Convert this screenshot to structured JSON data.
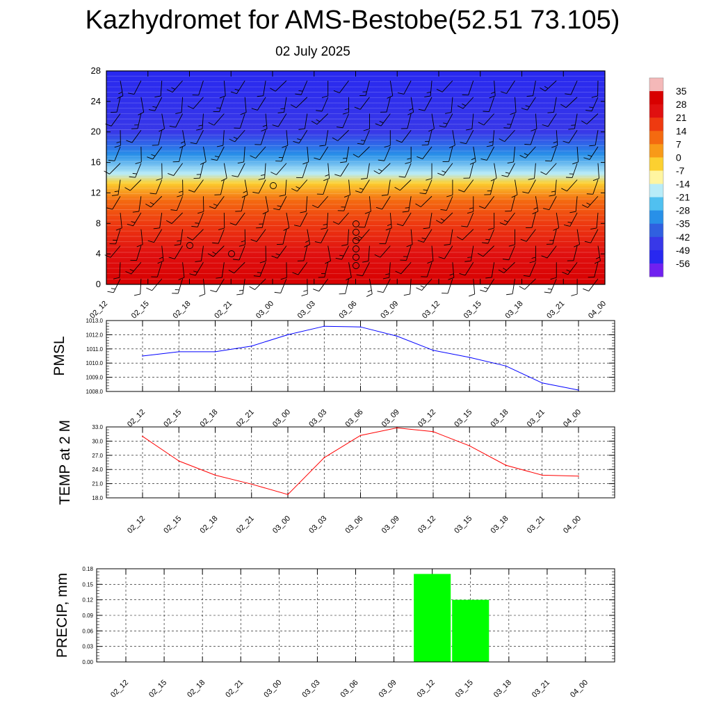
{
  "header": {
    "title": "Kazhydromet for AMS-Bestobe(52.51 73.105)",
    "date": "02 July 2025"
  },
  "colors": {
    "pmsl_line": "#0000ff",
    "temp_line": "#ff0000",
    "precip_bar": "#00ff00",
    "grid": "#000000"
  },
  "chart_data": [
    {
      "type": "heatmap",
      "name": "upper-air temperature with wind barbs",
      "categories": [
        "02_12",
        "02_15",
        "02_18",
        "02_21",
        "03_00",
        "03_03",
        "03_06",
        "03_09",
        "03_12",
        "03_15",
        "03_18",
        "03_21",
        "04_00"
      ],
      "y_ticks": [
        0,
        4,
        8,
        12,
        16,
        20,
        24,
        28
      ],
      "ylim": [
        0,
        28
      ],
      "colorbar_labels": [
        "35",
        "28",
        "21",
        "14",
        "7",
        "0",
        "-7",
        "-14",
        "-21",
        "-28",
        "-35",
        "-42",
        "-49",
        "-56"
      ],
      "colorbar_colors": [
        "#f4b8b8",
        "#d80000",
        "#e01010",
        "#ee3a10",
        "#f46a10",
        "#f89a18",
        "#fcd030",
        "#fff5a0",
        "#b8ecf8",
        "#50c0f0",
        "#2890e8",
        "#3060e0",
        "#3838e8",
        "#2828f0",
        "#7020f0"
      ],
      "temperature_by_level": [
        {
          "level": 0,
          "t": 28
        },
        {
          "level": 4,
          "t": 24
        },
        {
          "level": 8,
          "t": 14
        },
        {
          "level": 11,
          "t": 4
        },
        {
          "level": 13.3,
          "t": -8
        },
        {
          "level": 14.5,
          "t": -20
        },
        {
          "level": 17,
          "t": -35
        },
        {
          "level": 20,
          "t": -52
        },
        {
          "level": 28,
          "t": -56
        }
      ]
    },
    {
      "type": "line",
      "ylabel": "PMSL",
      "categories": [
        "02_12",
        "02_15",
        "02_18",
        "02_21",
        "03_00",
        "03_03",
        "03_06",
        "03_09",
        "03_12",
        "03_15",
        "03_18",
        "03_21",
        "04_00"
      ],
      "values": [
        1010.5,
        1010.8,
        1010.8,
        1011.2,
        1012.0,
        1012.6,
        1012.55,
        1011.9,
        1010.9,
        1010.4,
        1009.8,
        1008.6,
        1008.1
      ],
      "ylim": [
        1008.0,
        1013.0
      ],
      "y_ticks": [
        "1008.0",
        "1009.0",
        "1010.0",
        "1011.0",
        "1012.0",
        "1013.0"
      ],
      "grid": true
    },
    {
      "type": "line",
      "ylabel": "TEMP at 2 M",
      "categories": [
        "02_12",
        "02_15",
        "02_18",
        "02_21",
        "03_00",
        "03_03",
        "03_06",
        "03_09",
        "03_12",
        "03_15",
        "03_18",
        "03_21",
        "04_00"
      ],
      "values": [
        31.0,
        25.8,
        22.8,
        20.9,
        18.7,
        26.5,
        31.2,
        32.8,
        32.0,
        29.0,
        24.9,
        22.8,
        22.6
      ],
      "ylim": [
        18.0,
        33.0
      ],
      "y_ticks": [
        "18.0",
        "21.0",
        "24.0",
        "27.0",
        "30.0",
        "33.0"
      ],
      "grid": true
    },
    {
      "type": "bar",
      "ylabel": "PRECIP, mm",
      "categories": [
        "02_12",
        "02_15",
        "02_18",
        "02_21",
        "03_00",
        "03_03",
        "03_06",
        "03_09",
        "03_12",
        "03_15",
        "03_18",
        "03_21",
        "04_00"
      ],
      "values": [
        0,
        0,
        0,
        0,
        0,
        0,
        0,
        0,
        0.17,
        0.12,
        0,
        0,
        0
      ],
      "ylim": [
        0,
        0.18
      ],
      "y_ticks": [
        "0.00",
        "0.03",
        "0.06",
        "0.09",
        "0.12",
        "0.15",
        "0.18"
      ],
      "grid": true
    }
  ]
}
